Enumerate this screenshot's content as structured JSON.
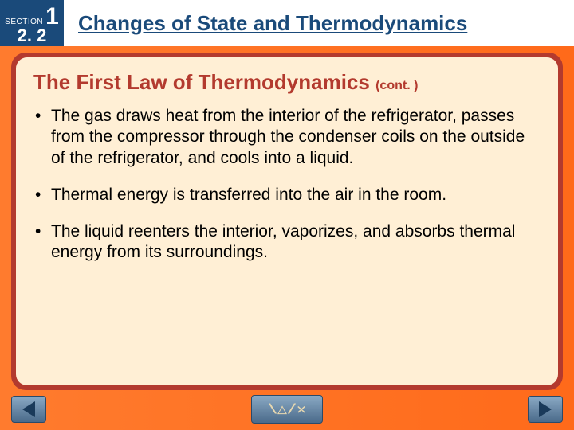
{
  "header": {
    "section_label": "SECTION",
    "section_number": "1",
    "section_sub": "2. 2",
    "title": "Changes of State and Thermodynamics"
  },
  "content": {
    "subheading": "The First Law of Thermodynamics",
    "cont_label": "(cont. )",
    "bullets": [
      "The gas draws heat from the interior of the refrigerator, passes from the compressor through the condenser coils on the outside of the refrigerator, and cools into a liquid.",
      "Thermal energy is transferred into the air in the room.",
      "The liquid reenters the interior, vaporizes, and absorbs thermal energy from its surroundings."
    ]
  },
  "nav": {
    "center_glyph": "\\/\\/x"
  },
  "colors": {
    "header_bg": "#1a4a7a",
    "gradient_start": "#ff7b2e",
    "gradient_end": "#ff6a1a",
    "frame": "#b33a2e",
    "panel": "#ffefd5",
    "title_color": "#1a4a7a"
  }
}
